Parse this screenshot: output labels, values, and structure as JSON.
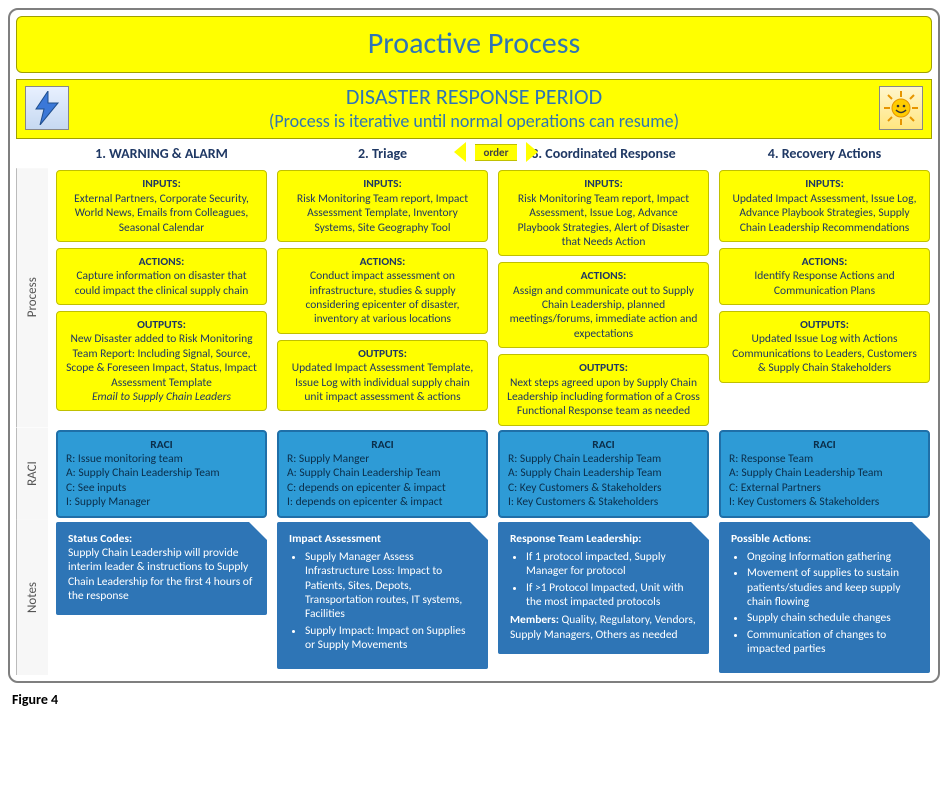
{
  "title": "Proactive Process",
  "header": {
    "line1": "DISASTER RESPONSE PERIOD",
    "line2": "(Process is iterative until normal operations can resume)",
    "icon_left": "lightning-icon",
    "icon_right": "sun-icon"
  },
  "row_labels": {
    "process": "Process",
    "raci": "RACI",
    "notes": "Notes"
  },
  "order_arrow": "order",
  "figure_caption": "Figure 4",
  "colors": {
    "yellow": "#ffff00",
    "yellow_border": "#c0c000",
    "header_text": "#2f75b5",
    "raci_bg": "#2e9bd6",
    "raci_border": "#1f6fa8",
    "notes_bg": "#2e75b6",
    "text_dark": "#1f3864"
  },
  "columns": [
    {
      "head": "1. WARNING & ALARM",
      "inputs": {
        "label": "INPUTS:",
        "body": "External Partners, Corporate Security, World News, Emails from Colleagues, Seasonal Calendar"
      },
      "actions": {
        "label": "ACTIONS:",
        "body": "Capture information on disaster that could impact the clinical supply chain"
      },
      "outputs": {
        "label": "OUTPUTS:",
        "body": "New Disaster added to Risk Monitoring Team Report: Including Signal, Source, Scope & Foreseen Impact, Status, Impact Assessment Template",
        "emphasis": "Email to Supply Chain Leaders"
      },
      "raci": {
        "label": "RACI",
        "lines": [
          "R: Issue monitoring team",
          "A: Supply Chain Leadership Team",
          "C: See inputs",
          "I: Supply Manager"
        ]
      },
      "notes": {
        "title": "Status Codes:",
        "body": "Supply Chain Leadership will provide interim leader & instructions to Supply Chain Leadership for the first 4 hours of the response"
      }
    },
    {
      "head": "2. Triage",
      "inputs": {
        "label": "INPUTS:",
        "body": "Risk Monitoring Team report, Impact Assessment Template, Inventory Systems, Site Geography Tool"
      },
      "actions": {
        "label": "ACTIONS:",
        "body": "Conduct impact assessment on infrastructure, studies & supply considering epicenter of disaster, inventory at various locations"
      },
      "outputs": {
        "label": "OUTPUTS:",
        "body": "Updated Impact Assessment Template, Issue Log with individual supply chain unit impact assessment & actions"
      },
      "raci": {
        "label": "RACI",
        "lines": [
          "R: Supply Manger",
          "A: Supply Chain Leadership Team",
          "C: depends on epicenter & impact",
          "I: depends on epicenter & impact"
        ]
      },
      "notes": {
        "title_html": "Impact <b>Assessment</b>",
        "bullets": [
          "Supply Manager Assess Infrastructure Loss: Impact to Patients, Sites, Depots, Transportation routes, IT systems, Facilities",
          "Supply Impact: Impact on Supplies or Supply Movements"
        ]
      }
    },
    {
      "head": "3. Coordinated Response",
      "inputs": {
        "label": "INPUTS:",
        "body": "Risk Monitoring Team report, Impact Assessment, Issue Log, Advance Playbook Strategies, Alert of Disaster that Needs Action"
      },
      "actions": {
        "label": "ACTIONS:",
        "body": "Assign and communicate out to Supply Chain Leadership, planned meetings/forums, immediate action and expectations"
      },
      "outputs": {
        "label": "OUTPUTS:",
        "body": "Next steps agreed upon by Supply Chain Leadership including formation of a Cross Functional Response team as needed"
      },
      "raci": {
        "label": "RACI",
        "lines": [
          "R: Supply Chain Leadership Team",
          "A: Supply Chain Leadership Team",
          "C: Key Customers & Stakeholders",
          "I: Key Customers & Stakeholders"
        ]
      },
      "notes": {
        "title": "Response Team Leadership:",
        "bullets": [
          "If 1 protocol impacted, Supply Manager for protocol",
          "If >1 Protocol Impacted,  Unit with the most impacted protocols"
        ],
        "subtitle": "Members:",
        "subbody": "Quality, Regulatory, Vendors, Supply Managers, Others as needed"
      }
    },
    {
      "head": "4. Recovery Actions",
      "inputs": {
        "label": "INPUTS:",
        "body": "Updated Impact Assessment, Issue Log, Advance Playbook Strategies, Supply Chain Leadership Recommendations"
      },
      "actions": {
        "label": "ACTIONS:",
        "body": "Identify Response Actions and Communication Plans"
      },
      "outputs": {
        "label": "OUTPUTS:",
        "body": "Updated Issue Log with Actions Communications to Leaders, Customers & Supply Chain Stakeholders"
      },
      "raci": {
        "label": "RACI",
        "lines": [
          "R: Response Team",
          "A: Supply Chain Leadership Team",
          "C: External Partners",
          "I: Key Customers & Stakeholders"
        ]
      },
      "notes": {
        "title": "Possible Actions:",
        "bullets": [
          "Ongoing Information gathering",
          "Movement of supplies to sustain patients/studies and keep supply chain flowing",
          "Supply chain schedule changes",
          "Communication of changes to impacted parties"
        ]
      }
    }
  ]
}
